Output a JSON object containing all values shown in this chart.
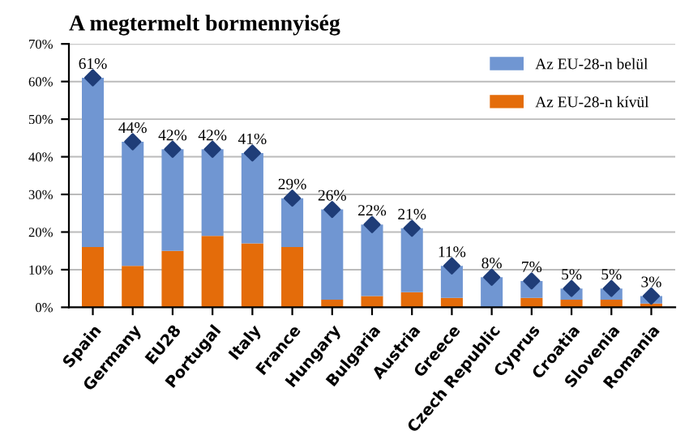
{
  "chart_data": {
    "type": "bar",
    "title": "A megtermelt bormennyiség",
    "categories": [
      "Spain",
      "Germany",
      "EU28",
      "Portugal",
      "Italy",
      "France",
      "Hungary",
      "Bulgaria",
      "Austria",
      "Greece",
      "Czech Republic",
      "Cyprus",
      "Croatia",
      "Slovenia",
      "Romania"
    ],
    "stacked": true,
    "series": [
      {
        "name": "Az EU-28-n kívül",
        "color": "#e46c0a",
        "values": [
          16,
          11,
          15,
          19,
          17,
          16,
          2,
          3,
          4,
          2.5,
          0,
          2.5,
          2,
          2,
          1
        ]
      },
      {
        "name": "Az EU-28-n belül",
        "color": "#7096d2",
        "values": [
          45,
          33,
          27,
          23,
          24,
          13,
          24,
          19,
          17,
          8.5,
          8,
          4.5,
          3,
          3,
          2
        ]
      },
      {
        "type": "scatter",
        "color": "#1f3d78",
        "marker": "diamond",
        "x": [
          "Spain",
          "Germany",
          "EU28",
          "Portugal",
          "Italy",
          "France",
          "Hungary",
          "Bulgaria",
          "Austria",
          "Greece",
          "Czech Republic",
          "Cyprus",
          "Croatia",
          "Slovenia",
          "Romania"
        ],
        "values": [
          61,
          44,
          42,
          42,
          41,
          29,
          26,
          22,
          21,
          11,
          8,
          7,
          5,
          5,
          3
        ],
        "value_labels": [
          "61%",
          "44%",
          "42%",
          "42%",
          "41%",
          "29%",
          "26%",
          "22%",
          "21%",
          "11%",
          "8%",
          "7%",
          "5%",
          "5%",
          "3%"
        ]
      }
    ],
    "ylim": [
      0,
      70
    ],
    "yticks": [
      {
        "value": 0,
        "label": "0%"
      },
      {
        "value": 10,
        "label": "10%"
      },
      {
        "value": 20,
        "label": "20%"
      },
      {
        "value": 30,
        "label": "30%"
      },
      {
        "value": 40,
        "label": "40%"
      },
      {
        "value": 50,
        "label": "50%"
      },
      {
        "value": 60,
        "label": "60%"
      },
      {
        "value": 70,
        "label": "70%"
      }
    ],
    "grid": "y",
    "legend": "top right"
  }
}
